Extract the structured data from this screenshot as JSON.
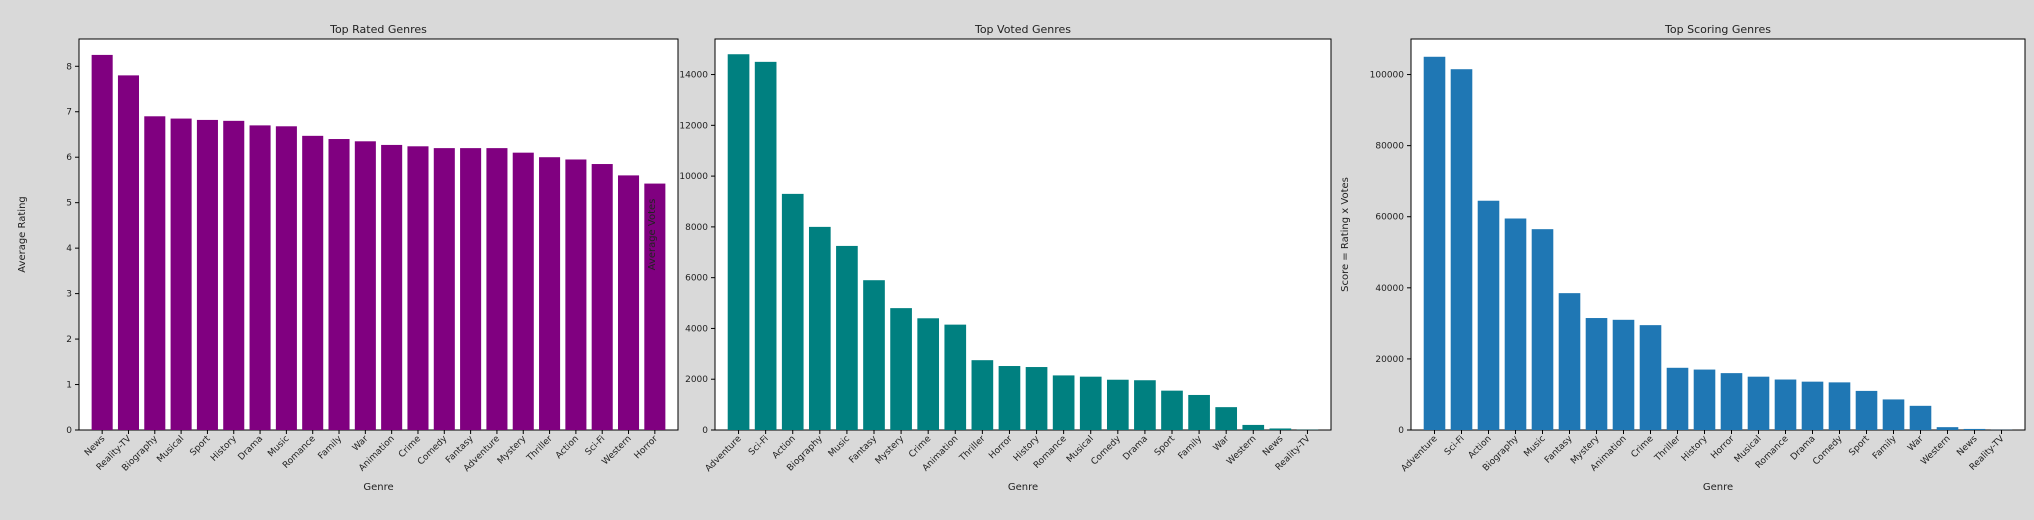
{
  "chart_data": [
    {
      "type": "bar",
      "title": "Top Rated Genres",
      "xlabel": "Genre",
      "ylabel": "Average Rating",
      "color": "#800080",
      "ylim": [
        0,
        8.6
      ],
      "yticks": [
        0,
        1,
        2,
        3,
        4,
        5,
        6,
        7,
        8
      ],
      "grid": false,
      "categories": [
        "News",
        "Reality-TV",
        "Biography",
        "Musical",
        "Sport",
        "History",
        "Drama",
        "Music",
        "Romance",
        "Family",
        "War",
        "Animation",
        "Crime",
        "Comedy",
        "Fantasy",
        "Adventure",
        "Mystery",
        "Thriller",
        "Action",
        "Sci-Fi",
        "Western",
        "Horror"
      ],
      "values": [
        8.25,
        7.8,
        6.9,
        6.85,
        6.82,
        6.8,
        6.7,
        6.68,
        6.47,
        6.4,
        6.35,
        6.27,
        6.24,
        6.2,
        6.2,
        6.2,
        6.1,
        6.0,
        5.95,
        5.85,
        5.6,
        5.42
      ]
    },
    {
      "type": "bar",
      "title": "Top Voted Genres",
      "xlabel": "Genre",
      "ylabel": "Average Votes",
      "color": "#008080",
      "ylim": [
        0,
        15400
      ],
      "yticks": [
        0,
        2000,
        4000,
        6000,
        8000,
        10000,
        12000,
        14000
      ],
      "grid": false,
      "categories": [
        "Adventure",
        "Sci-Fi",
        "Action",
        "Biography",
        "Music",
        "Fantasy",
        "Mystery",
        "Crime",
        "Animation",
        "Thriller",
        "Horror",
        "History",
        "Romance",
        "Musical",
        "Comedy",
        "Drama",
        "Sport",
        "Family",
        "War",
        "Western",
        "News",
        "Reality-TV"
      ],
      "values": [
        14800,
        14500,
        9300,
        8000,
        7250,
        5900,
        4800,
        4400,
        4150,
        2750,
        2520,
        2480,
        2150,
        2100,
        1980,
        1960,
        1550,
        1380,
        900,
        200,
        60,
        10
      ]
    },
    {
      "type": "bar",
      "title": "Top Scoring Genres",
      "xlabel": "Genre",
      "ylabel": "Score = Rating x Votes",
      "color": "#1f77b4",
      "ylim": [
        0,
        110000
      ],
      "yticks": [
        0,
        20000,
        40000,
        60000,
        80000,
        100000
      ],
      "grid": false,
      "categories": [
        "Adventure",
        "Sci-Fi",
        "Action",
        "Biography",
        "Music",
        "Fantasy",
        "Mystery",
        "Animation",
        "Crime",
        "Thriller",
        "History",
        "Horror",
        "Musical",
        "Romance",
        "Drama",
        "Comedy",
        "Sport",
        "Family",
        "War",
        "Western",
        "News",
        "Reality-TV"
      ],
      "values": [
        105000,
        101500,
        64500,
        59500,
        56500,
        38500,
        31500,
        31000,
        29500,
        17500,
        17000,
        16000,
        15000,
        14200,
        13600,
        13400,
        11000,
        8600,
        6800,
        800,
        300,
        50
      ]
    }
  ]
}
